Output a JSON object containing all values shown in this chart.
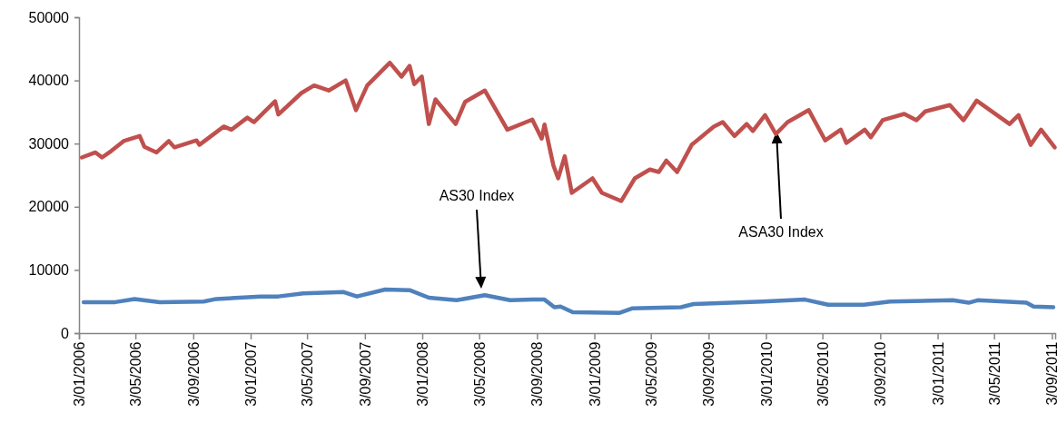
{
  "chart_data": {
    "type": "line",
    "xlim": [
      "2006-01-03",
      "2011-09-10"
    ],
    "ylim": [
      0,
      50000
    ],
    "yticks": [
      0,
      10000,
      20000,
      30000,
      40000,
      50000
    ],
    "xticks": [
      {
        "value": "2006-01-03",
        "label": "3/01/2006"
      },
      {
        "value": "2006-05-03",
        "label": "3/05/2006"
      },
      {
        "value": "2006-09-03",
        "label": "3/09/2006"
      },
      {
        "value": "2007-01-03",
        "label": "3/01/2007"
      },
      {
        "value": "2007-05-03",
        "label": "3/05/2007"
      },
      {
        "value": "2007-09-03",
        "label": "3/09/2007"
      },
      {
        "value": "2008-01-03",
        "label": "3/01/2008"
      },
      {
        "value": "2008-05-03",
        "label": "3/05/2008"
      },
      {
        "value": "2008-09-03",
        "label": "3/09/2008"
      },
      {
        "value": "2009-01-03",
        "label": "3/01/2009"
      },
      {
        "value": "2009-05-03",
        "label": "3/05/2009"
      },
      {
        "value": "2009-09-03",
        "label": "3/09/2009"
      },
      {
        "value": "2010-01-03",
        "label": "3/01/2010"
      },
      {
        "value": "2010-05-03",
        "label": "3/05/2010"
      },
      {
        "value": "2010-09-03",
        "label": "3/09/2010"
      },
      {
        "value": "2011-01-03",
        "label": "3/01/2011"
      },
      {
        "value": "2011-05-03",
        "label": "3/05/2011"
      },
      {
        "value": "2011-09-03",
        "label": "3/09/2011"
      }
    ],
    "series": [
      {
        "color": "#c0504d",
        "x": [
          "2006-01-09",
          "2006-02-07",
          "2006-02-21",
          "2006-03-12",
          "2006-04-08",
          "2006-05-12",
          "2006-05-22",
          "2006-06-17",
          "2006-07-13",
          "2006-07-25",
          "2006-09-10",
          "2006-09-16",
          "2006-11-07",
          "2006-11-23",
          "2006-12-27",
          "2007-01-10",
          "2007-02-24",
          "2007-03-03",
          "2007-04-21",
          "2007-05-18",
          "2007-06-18",
          "2007-07-24",
          "2007-08-15",
          "2007-09-08",
          "2007-10-26",
          "2007-11-20",
          "2007-12-07",
          "2007-12-17",
          "2008-01-02",
          "2008-01-17",
          "2008-01-31",
          "2008-03-14",
          "2008-04-03",
          "2008-05-15",
          "2008-07-02",
          "2008-08-24",
          "2008-09-13",
          "2008-09-19",
          "2008-10-08",
          "2008-10-18",
          "2008-11-01",
          "2008-11-16",
          "2008-12-30",
          "2009-01-19",
          "2009-03-01",
          "2009-03-30",
          "2009-05-01",
          "2009-05-20",
          "2009-06-05",
          "2009-06-28",
          "2009-07-29",
          "2009-09-14",
          "2009-10-03",
          "2009-10-28",
          "2009-11-23",
          "2009-12-06",
          "2010-01-01",
          "2010-01-24",
          "2010-02-18",
          "2010-04-04",
          "2010-05-09",
          "2010-06-11",
          "2010-06-23",
          "2010-08-01",
          "2010-08-14",
          "2010-09-08",
          "2010-10-24",
          "2010-11-19",
          "2010-12-08",
          "2011-01-29",
          "2011-02-27",
          "2011-03-27",
          "2011-05-04",
          "2011-06-05",
          "2011-06-24",
          "2011-07-20",
          "2011-08-11",
          "2011-09-09"
        ],
        "values": [
          27800,
          28600,
          27800,
          28800,
          30400,
          31200,
          29500,
          28600,
          30400,
          29400,
          30500,
          29800,
          32700,
          32200,
          34100,
          33400,
          36700,
          34600,
          38000,
          39200,
          38400,
          40000,
          35300,
          39200,
          42800,
          40600,
          42300,
          39400,
          40600,
          33100,
          37000,
          33100,
          36600,
          38400,
          32200,
          33800,
          30800,
          33000,
          26500,
          24500,
          28000,
          22200,
          24500,
          22200,
          20900,
          24500,
          25900,
          25500,
          27300,
          25500,
          29800,
          32700,
          33400,
          31200,
          33100,
          32000,
          34500,
          31500,
          33400,
          35300,
          30500,
          32200,
          30100,
          32200,
          31000,
          33700,
          34700,
          33700,
          35100,
          36100,
          33700,
          36800,
          34800,
          33100,
          34500,
          29800,
          32200,
          29400
        ]
      },
      {
        "color": "#4f81bd",
        "x": [
          "2006-01-13",
          "2006-03-21",
          "2006-05-01",
          "2006-06-24",
          "2006-09-25",
          "2006-10-22",
          "2007-01-24",
          "2007-03-03",
          "2007-04-25",
          "2007-07-20",
          "2007-08-17",
          "2007-10-16",
          "2007-12-07",
          "2008-01-17",
          "2008-03-16",
          "2008-05-15",
          "2008-07-08",
          "2008-08-24",
          "2008-09-19",
          "2008-10-10",
          "2008-10-23",
          "2008-11-18",
          "2009-02-26",
          "2009-03-24",
          "2009-07-06",
          "2009-08-02",
          "2009-12-27",
          "2010-03-27",
          "2010-05-15",
          "2010-07-30",
          "2010-09-24",
          "2011-02-04",
          "2011-03-10",
          "2011-03-29",
          "2011-07-11",
          "2011-07-26",
          "2011-09-06"
        ],
        "values": [
          4900,
          4900,
          5400,
          4900,
          5000,
          5400,
          5800,
          5800,
          6300,
          6500,
          5800,
          6900,
          6800,
          5600,
          5200,
          6000,
          5200,
          5300,
          5300,
          4100,
          4200,
          3300,
          3200,
          3900,
          4100,
          4600,
          5000,
          5300,
          4500,
          4500,
          5000,
          5200,
          4800,
          5200,
          4800,
          4200,
          4100
        ]
      }
    ],
    "annotations": [
      "AS30 Index",
      "ASA30 Index"
    ]
  }
}
